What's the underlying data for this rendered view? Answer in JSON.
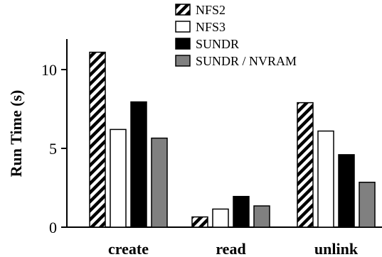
{
  "chart_data": {
    "type": "bar",
    "categories": [
      "create",
      "read",
      "unlink"
    ],
    "ylabel": "Run Time (s)",
    "xlabel": "",
    "title": "",
    "ylim": [
      0,
      12
    ],
    "yticks": [
      0,
      5,
      10
    ],
    "grid": false,
    "legend_position": "top-right",
    "series": [
      {
        "name": "NFS2",
        "values": [
          11.1,
          0.65,
          7.9
        ],
        "fill": "hatch",
        "color": "#000000"
      },
      {
        "name": "NFS3",
        "values": [
          6.2,
          1.15,
          6.1
        ],
        "fill": "solid",
        "color": "#ffffff"
      },
      {
        "name": "SUNDR",
        "values": [
          7.95,
          1.95,
          4.6
        ],
        "fill": "solid",
        "color": "#000000"
      },
      {
        "name": "SUNDR / NVRAM",
        "values": [
          5.65,
          1.35,
          2.85
        ],
        "fill": "solid",
        "color": "#808080"
      }
    ]
  }
}
